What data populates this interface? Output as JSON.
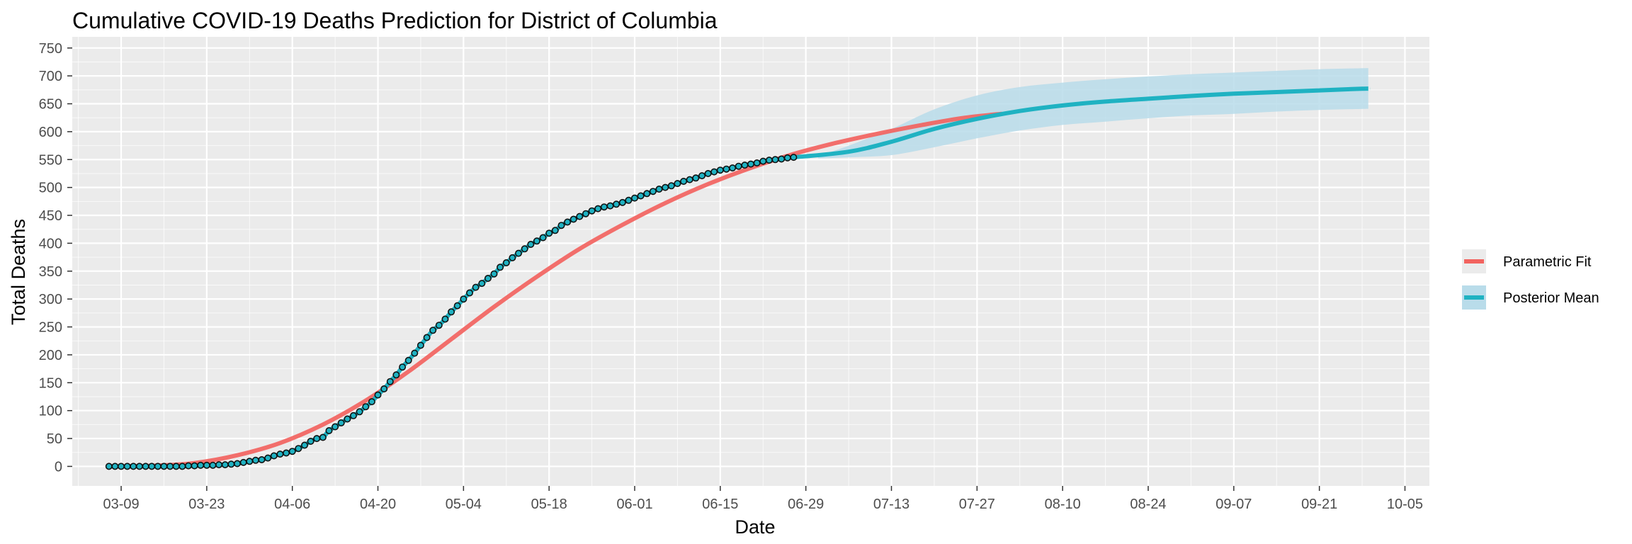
{
  "chart_data": {
    "type": "line",
    "title": "Cumulative COVID-19 Deaths Prediction for District of Columbia",
    "xlabel": "Date",
    "ylabel": "Total Deaths",
    "x_axis": "date",
    "x_range": [
      "2020-03-01",
      "2020-10-09"
    ],
    "xtick_dates": [
      "2020-03-09",
      "2020-03-23",
      "2020-04-06",
      "2020-04-20",
      "2020-05-04",
      "2020-05-18",
      "2020-06-01",
      "2020-06-15",
      "2020-06-29",
      "2020-07-13",
      "2020-07-27",
      "2020-08-10",
      "2020-08-24",
      "2020-09-07",
      "2020-09-21",
      "2020-10-05"
    ],
    "xtick_labels": [
      "03-09",
      "03-23",
      "04-06",
      "04-20",
      "05-04",
      "05-18",
      "06-01",
      "06-15",
      "06-29",
      "07-13",
      "07-27",
      "08-10",
      "08-24",
      "09-07",
      "09-21",
      "10-05"
    ],
    "ylim": [
      -35,
      770
    ],
    "yticks": [
      0,
      50,
      100,
      150,
      200,
      250,
      300,
      350,
      400,
      450,
      500,
      550,
      600,
      650,
      700,
      750
    ],
    "grid": true,
    "legend_position": "right",
    "colors": {
      "panel_bg": "#ebebeb",
      "grid": "#ffffff",
      "parametric": "#f2635f",
      "posterior": "#1fb2c2",
      "band": "#b9dcea",
      "point_fill": "#1fb2c2",
      "point_edge": "#111111"
    },
    "observed": {
      "start_date": "2020-03-07",
      "values": [
        0,
        0,
        0,
        0,
        0,
        0,
        0,
        0,
        0,
        0,
        0,
        0,
        0,
        1,
        1,
        2,
        2,
        2,
        3,
        3,
        4,
        5,
        7,
        9,
        11,
        12,
        15,
        19,
        22,
        24,
        27,
        32,
        38,
        45,
        50,
        52,
        64,
        71,
        78,
        85,
        91,
        98,
        107,
        116,
        128,
        139,
        152,
        164,
        178,
        190,
        203,
        217,
        231,
        244,
        253,
        264,
        277,
        288,
        300,
        311,
        321,
        328,
        337,
        345,
        357,
        365,
        374,
        382,
        390,
        398,
        404,
        410,
        418,
        423,
        432,
        438,
        443,
        448,
        453,
        458,
        462,
        465,
        467,
        470,
        473,
        477,
        481,
        485,
        489,
        493,
        497,
        500,
        503,
        507,
        511,
        514,
        517,
        521,
        525,
        528,
        531,
        533,
        535,
        538,
        540,
        542,
        544,
        547,
        549,
        550,
        551,
        553,
        554
      ]
    },
    "series": [
      {
        "name": "Parametric Fit",
        "color": "#f2635f",
        "points": [
          [
            "2020-03-07",
            0
          ],
          [
            "2020-03-14",
            1
          ],
          [
            "2020-03-21",
            6
          ],
          [
            "2020-03-28",
            20
          ],
          [
            "2020-04-04",
            42
          ],
          [
            "2020-04-11",
            75
          ],
          [
            "2020-04-18",
            118
          ],
          [
            "2020-04-25",
            170
          ],
          [
            "2020-05-02",
            228
          ],
          [
            "2020-05-09",
            286
          ],
          [
            "2020-05-16",
            340
          ],
          [
            "2020-05-23",
            390
          ],
          [
            "2020-05-30",
            433
          ],
          [
            "2020-06-06",
            472
          ],
          [
            "2020-06-13",
            506
          ],
          [
            "2020-06-20",
            535
          ],
          [
            "2020-06-27",
            560
          ],
          [
            "2020-07-04",
            580
          ],
          [
            "2020-07-11",
            597
          ],
          [
            "2020-07-18",
            612
          ],
          [
            "2020-07-25",
            625
          ],
          [
            "2020-07-31",
            632
          ]
        ]
      },
      {
        "name": "Posterior Mean",
        "color": "#1fb2c2",
        "points": [
          [
            "2020-07-01",
            554
          ],
          [
            "2020-07-06",
            564
          ],
          [
            "2020-07-13",
            582
          ],
          [
            "2020-07-20",
            605
          ],
          [
            "2020-07-27",
            623
          ],
          [
            "2020-08-03",
            637
          ],
          [
            "2020-08-10",
            647
          ],
          [
            "2020-08-17",
            654
          ],
          [
            "2020-08-24",
            659
          ],
          [
            "2020-08-31",
            664
          ],
          [
            "2020-09-07",
            668
          ],
          [
            "2020-09-14",
            671
          ],
          [
            "2020-09-21",
            674
          ],
          [
            "2020-09-28",
            677
          ],
          [
            "2020-09-29",
            677
          ]
        ]
      }
    ],
    "band": {
      "upper": [
        [
          "2020-07-01",
          556
        ],
        [
          "2020-07-06",
          575
        ],
        [
          "2020-07-13",
          605
        ],
        [
          "2020-07-20",
          640
        ],
        [
          "2020-07-27",
          665
        ],
        [
          "2020-08-03",
          680
        ],
        [
          "2020-08-10",
          688
        ],
        [
          "2020-08-17",
          694
        ],
        [
          "2020-08-24",
          699
        ],
        [
          "2020-08-31",
          703
        ],
        [
          "2020-09-07",
          706
        ],
        [
          "2020-09-14",
          709
        ],
        [
          "2020-09-21",
          712
        ],
        [
          "2020-09-29",
          714
        ]
      ],
      "lower": [
        [
          "2020-07-01",
          552
        ],
        [
          "2020-07-06",
          554
        ],
        [
          "2020-07-13",
          558
        ],
        [
          "2020-07-20",
          572
        ],
        [
          "2020-07-27",
          588
        ],
        [
          "2020-08-03",
          602
        ],
        [
          "2020-08-10",
          612
        ],
        [
          "2020-08-17",
          618
        ],
        [
          "2020-08-24",
          624
        ],
        [
          "2020-08-31",
          629
        ],
        [
          "2020-09-07",
          632
        ],
        [
          "2020-09-14",
          636
        ],
        [
          "2020-09-21",
          639
        ],
        [
          "2020-09-29",
          641
        ]
      ]
    },
    "legend": [
      {
        "label": "Parametric Fit",
        "color": "#f2635f"
      },
      {
        "label": "Posterior Mean",
        "color": "#1fb2c2"
      }
    ]
  }
}
